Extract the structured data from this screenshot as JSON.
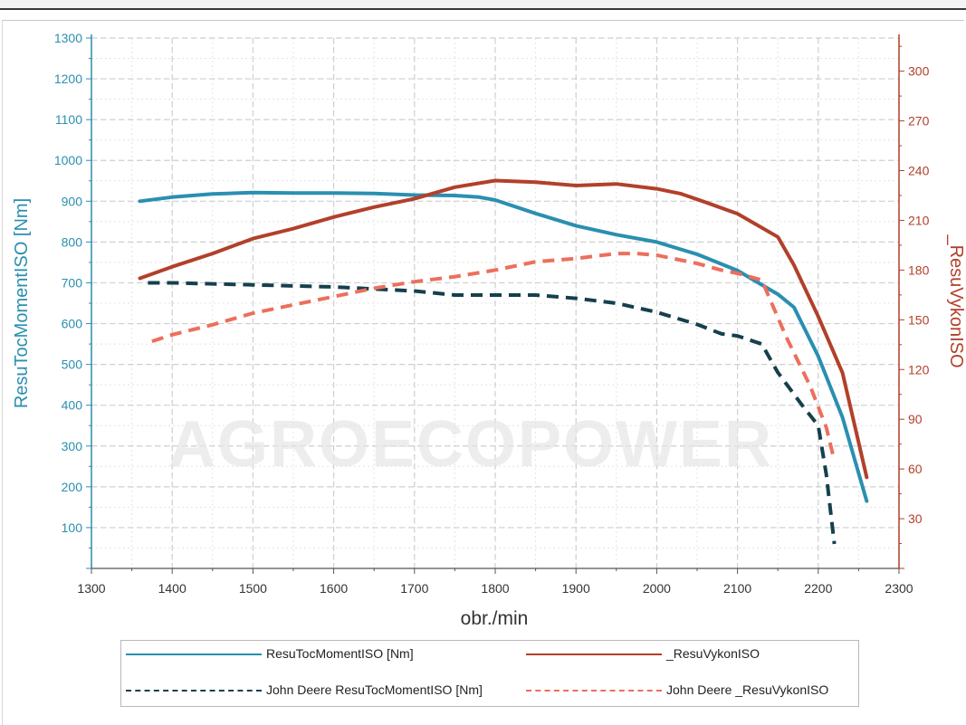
{
  "colors": {
    "series1": "#2a8fb0",
    "series2": "#b2402a",
    "series3": "#15404d",
    "series4": "#ec6f5c",
    "left_axis": "#2a8fb0",
    "right_axis": "#b2402a",
    "grid": "#cfcfcf"
  },
  "watermark": "AGROECOPOWER",
  "chart_data": {
    "type": "line",
    "xlabel": "obr./min",
    "ylabel_left": "ResuTocMomentISO [Nm]",
    "ylabel_right": "_ResuVykonISO",
    "xlim": [
      1300,
      2300
    ],
    "xticks": [
      1300,
      1400,
      1500,
      1600,
      1700,
      1800,
      1900,
      2000,
      2100,
      2200,
      2300
    ],
    "ylim_left": [
      0,
      1300
    ],
    "yticks_left": [
      100,
      200,
      300,
      400,
      500,
      600,
      700,
      800,
      900,
      1000,
      1100,
      1200,
      1300
    ],
    "ylim_right": [
      0,
      320
    ],
    "yticks_right": [
      30,
      60,
      90,
      120,
      150,
      180,
      210,
      240,
      270,
      300
    ],
    "grid": true,
    "legend_position": "bottom",
    "series": [
      {
        "name": "ResuTocMomentISO [Nm]",
        "axis": "left",
        "style": "solid",
        "x": [
          1360,
          1400,
          1450,
          1500,
          1550,
          1600,
          1650,
          1700,
          1750,
          1780,
          1800,
          1850,
          1900,
          1950,
          2000,
          2050,
          2100,
          2150,
          2170,
          2200,
          2230,
          2260
        ],
        "y": [
          900,
          910,
          918,
          921,
          920,
          920,
          919,
          915,
          914,
          910,
          903,
          870,
          840,
          818,
          800,
          770,
          730,
          672,
          640,
          520,
          370,
          165
        ]
      },
      {
        "name": "_ResuVykonISO",
        "axis": "right",
        "style": "solid",
        "x": [
          1360,
          1400,
          1450,
          1500,
          1550,
          1600,
          1650,
          1700,
          1750,
          1800,
          1850,
          1900,
          1950,
          2000,
          2030,
          2060,
          2100,
          2150,
          2170,
          2200,
          2230,
          2260
        ],
        "y": [
          175,
          182,
          190,
          199,
          205,
          212,
          218,
          223,
          230,
          234,
          233,
          231,
          232,
          229,
          226,
          221,
          214,
          200,
          183,
          152,
          118,
          55
        ]
      },
      {
        "name": "John Deere ResuTocMomentISO [Nm]",
        "axis": "left",
        "style": "dashed",
        "x": [
          1370,
          1400,
          1500,
          1600,
          1700,
          1750,
          1800,
          1850,
          1900,
          1950,
          2000,
          2050,
          2080,
          2100,
          2130,
          2150,
          2180,
          2200,
          2210,
          2220
        ],
        "y": [
          700,
          700,
          695,
          690,
          680,
          670,
          670,
          670,
          662,
          650,
          628,
          598,
          575,
          570,
          550,
          480,
          400,
          350,
          230,
          60
        ]
      },
      {
        "name": "John Deere _ResuVykonISO",
        "axis": "right",
        "style": "dashed",
        "x": [
          1375,
          1400,
          1450,
          1500,
          1550,
          1600,
          1650,
          1700,
          1750,
          1800,
          1850,
          1900,
          1950,
          1975,
          2000,
          2050,
          2080,
          2100,
          2130,
          2160,
          2190,
          2210,
          2220
        ],
        "y": [
          137,
          141,
          147,
          154,
          159,
          164,
          169,
          173,
          176,
          180,
          185,
          187,
          190,
          190,
          189,
          184,
          180,
          178,
          174,
          140,
          110,
          85,
          65
        ]
      }
    ]
  }
}
